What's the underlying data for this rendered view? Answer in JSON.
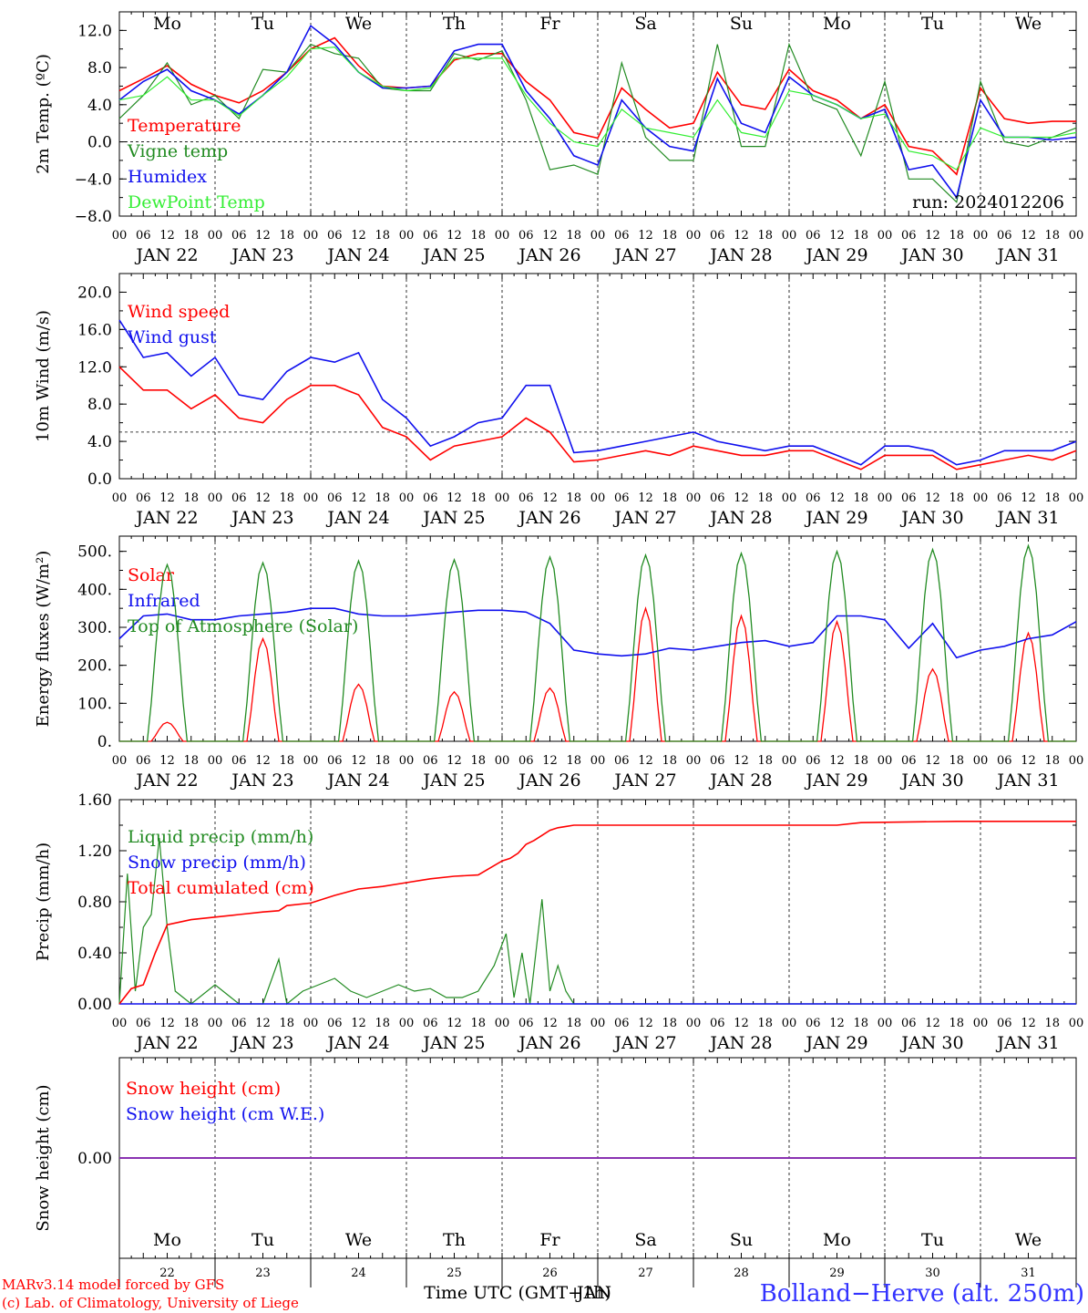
{
  "colors": {
    "red": "#ff0000",
    "darkgreen": "#228b22",
    "blue": "#1010ee",
    "lightgreen": "#33ee33",
    "purple": "#8b30b0"
  },
  "days": [
    "Mo",
    "Tu",
    "We",
    "Th",
    "Fr",
    "Sa",
    "Su",
    "Mo",
    "Tu",
    "We"
  ],
  "weekend_days": [
    5,
    6
  ],
  "date_labels": [
    "JAN 22",
    "JAN 23",
    "JAN 24",
    "JAN 25",
    "JAN 26",
    "JAN 27",
    "JAN 28",
    "JAN 29",
    "JAN 30",
    "JAN 31"
  ],
  "day_numbers": [
    "22",
    "23",
    "24",
    "25",
    "26",
    "27",
    "28",
    "29",
    "30",
    "31"
  ],
  "hour_ticks": [
    "00",
    "06",
    "12",
    "18"
  ],
  "hour_end": "00",
  "run_label": "run: 2024012206",
  "footer": {
    "line1": "MARv3.14 model forced by GFS",
    "line2": "(c) Lab. of Climatology, University of Liege",
    "axis_title": "Time UTC (GMT+1h)",
    "axis_overlap": "JAN",
    "station": "Bolland−Herve (alt. 250m)"
  },
  "chart_data": [
    {
      "type": "line",
      "ylabel": "2m Temp. (ºC)",
      "ylim": [
        -8,
        14
      ],
      "yticks": [
        12.0,
        8.0,
        4.0,
        0.0,
        -4.0,
        -8.0
      ],
      "ytick_labels": [
        "12.0",
        "8.0",
        "4.0",
        "0.0",
        "−4.0",
        "−8.0"
      ],
      "reference_line": 0,
      "x_hours": [
        0,
        6,
        12,
        18,
        24,
        30,
        36,
        42,
        48,
        54,
        60,
        66,
        72,
        78,
        84,
        90,
        96,
        102,
        108,
        114,
        120,
        126,
        132,
        138,
        144,
        150,
        156,
        162,
        168,
        174,
        180,
        186,
        192,
        198,
        204,
        210,
        216,
        222,
        228,
        234,
        240
      ],
      "series": [
        {
          "name": "Temperature",
          "color": "red",
          "values": [
            5.5,
            6.8,
            8.2,
            6.2,
            5.0,
            4.2,
            5.5,
            7.5,
            10.0,
            11.2,
            8.2,
            6.0,
            5.8,
            6.0,
            8.8,
            9.5,
            9.5,
            6.5,
            4.5,
            1.0,
            0.4,
            5.8,
            3.5,
            1.5,
            2.0,
            7.5,
            4.0,
            3.5,
            7.8,
            5.5,
            4.5,
            2.5,
            4.0,
            -0.5,
            -1.0,
            -3.5,
            5.8,
            2.5,
            2.0,
            2.2,
            2.2
          ]
        },
        {
          "name": "Vigne temp",
          "color": "darkgreen",
          "values": [
            2.5,
            5.0,
            8.5,
            4.0,
            5.0,
            2.5,
            7.8,
            7.5,
            10.5,
            9.5,
            9.0,
            5.8,
            5.5,
            5.5,
            9.5,
            8.8,
            9.8,
            4.5,
            -3.0,
            -2.5,
            -3.5,
            8.5,
            0.5,
            -2.0,
            -2.0,
            10.5,
            -0.5,
            -0.5,
            10.5,
            4.5,
            3.5,
            -1.5,
            6.5,
            -4.0,
            -4.0,
            -6.5,
            6.5,
            0.0,
            -0.5,
            0.5,
            1.5
          ]
        },
        {
          "name": "Humidex",
          "color": "blue",
          "values": [
            4.5,
            6.5,
            7.8,
            5.5,
            4.5,
            3.0,
            5.0,
            7.5,
            12.5,
            10.5,
            7.5,
            5.8,
            5.8,
            6.0,
            9.8,
            10.5,
            10.5,
            5.5,
            2.5,
            -1.5,
            -2.5,
            4.5,
            1.5,
            -0.5,
            -1.0,
            6.8,
            2.0,
            1.0,
            7.0,
            5.0,
            4.0,
            2.5,
            3.5,
            -3.0,
            -2.5,
            -6.0,
            4.5,
            0.5,
            0.5,
            0.2,
            0.5
          ]
        },
        {
          "name": "DewPoint Temp",
          "color": "lightgreen",
          "values": [
            4.5,
            5.0,
            7.0,
            4.5,
            4.5,
            2.8,
            5.0,
            7.0,
            10.0,
            10.2,
            7.5,
            6.0,
            5.5,
            5.8,
            9.0,
            9.0,
            9.0,
            5.0,
            2.0,
            0.0,
            -0.5,
            3.5,
            1.5,
            1.0,
            0.5,
            4.5,
            1.0,
            0.5,
            5.5,
            5.0,
            4.0,
            2.5,
            3.0,
            -1.0,
            -1.5,
            -3.0,
            1.5,
            0.5,
            0.5,
            0.5,
            1.0
          ]
        }
      ]
    },
    {
      "type": "line",
      "ylabel": "10m Wind (m/s)",
      "ylim": [
        0,
        22
      ],
      "yticks": [
        20.0,
        16.0,
        12.0,
        8.0,
        4.0,
        0.0
      ],
      "ytick_labels": [
        "20.0",
        "16.0",
        "12.0",
        "8.0",
        "4.0",
        "0.0"
      ],
      "reference_line": 5,
      "x_hours": [
        0,
        6,
        12,
        18,
        24,
        30,
        36,
        42,
        48,
        54,
        60,
        66,
        72,
        78,
        84,
        90,
        96,
        102,
        108,
        114,
        120,
        126,
        132,
        138,
        144,
        150,
        156,
        162,
        168,
        174,
        180,
        186,
        192,
        198,
        204,
        210,
        216,
        222,
        228,
        234,
        240
      ],
      "series": [
        {
          "name": "Wind speed",
          "color": "red",
          "values": [
            12.0,
            9.5,
            9.5,
            7.5,
            9.0,
            6.5,
            6.0,
            8.5,
            10.0,
            10.0,
            9.0,
            5.5,
            4.5,
            2.0,
            3.5,
            4.0,
            4.5,
            6.5,
            5.0,
            1.8,
            2.0,
            2.5,
            3.0,
            2.5,
            3.5,
            3.0,
            2.5,
            2.5,
            3.0,
            3.0,
            2.0,
            1.0,
            2.5,
            2.5,
            2.5,
            1.0,
            1.5,
            2.0,
            2.5,
            2.0,
            3.0
          ]
        },
        {
          "name": "Wind gust",
          "color": "blue",
          "values": [
            17.0,
            13.0,
            13.5,
            11.0,
            13.0,
            9.0,
            8.5,
            11.5,
            13.0,
            12.5,
            13.5,
            8.5,
            6.5,
            3.5,
            4.5,
            6.0,
            6.5,
            10.0,
            10.0,
            2.8,
            3.0,
            3.5,
            4.0,
            4.5,
            5.0,
            4.0,
            3.5,
            3.0,
            3.5,
            3.5,
            2.5,
            1.5,
            3.5,
            3.5,
            3.0,
            1.5,
            2.0,
            3.0,
            3.0,
            3.0,
            4.0
          ]
        }
      ]
    },
    {
      "type": "line",
      "ylabel": "Energy fluxes (W/m²)",
      "ylim": [
        0,
        540
      ],
      "yticks": [
        500,
        400,
        300,
        200,
        100,
        0
      ],
      "ytick_labels": [
        "500.",
        "400.",
        "300.",
        "200.",
        "100.",
        "0."
      ],
      "series": [
        {
          "name": "Solar",
          "color": "red",
          "day_peaks": [
            50,
            270,
            150,
            130,
            140,
            350,
            330,
            315,
            190,
            285
          ]
        },
        {
          "name": "Infrared",
          "color": "blue",
          "x_hours": [
            0,
            6,
            12,
            18,
            24,
            30,
            36,
            42,
            48,
            54,
            60,
            66,
            72,
            78,
            84,
            90,
            96,
            102,
            108,
            114,
            120,
            126,
            132,
            138,
            144,
            150,
            156,
            162,
            168,
            174,
            180,
            186,
            192,
            198,
            204,
            210,
            216,
            222,
            228,
            234,
            240
          ],
          "values": [
            270,
            330,
            335,
            320,
            320,
            330,
            335,
            340,
            350,
            350,
            335,
            330,
            330,
            335,
            340,
            345,
            345,
            340,
            310,
            240,
            230,
            225,
            230,
            245,
            240,
            250,
            260,
            265,
            250,
            260,
            330,
            330,
            320,
            245,
            310,
            220,
            240,
            250,
            270,
            280,
            315
          ]
        },
        {
          "name": "Top of Atmosphere (Solar)",
          "color": "darkgreen",
          "day_peaks": [
            465,
            470,
            475,
            478,
            485,
            490,
            495,
            500,
            505,
            515
          ]
        }
      ]
    },
    {
      "type": "line",
      "ylabel": "Precip (mm/h)",
      "ylim": [
        0,
        1.6
      ],
      "yticks": [
        1.6,
        1.2,
        0.8,
        0.4,
        0.0
      ],
      "ytick_labels": [
        "1.60",
        "1.20",
        "0.80",
        "0.40",
        "0.00"
      ],
      "series": [
        {
          "name": "Liquid precip (mm/h)",
          "color": "darkgreen",
          "x_hours": [
            0,
            2,
            4,
            6,
            8,
            10,
            12,
            14,
            18,
            24,
            30,
            36,
            40,
            42,
            46,
            50,
            54,
            58,
            62,
            66,
            70,
            74,
            78,
            82,
            86,
            90,
            94,
            97,
            99,
            101,
            103,
            106,
            108,
            110,
            112,
            114,
            118,
            120,
            240
          ],
          "values": [
            0,
            1.02,
            0.1,
            0.6,
            0.7,
            1.3,
            0.6,
            0.1,
            0.0,
            0.15,
            0.0,
            0.0,
            0.35,
            0.0,
            0.1,
            0.15,
            0.2,
            0.1,
            0.05,
            0.1,
            0.15,
            0.1,
            0.12,
            0.05,
            0.05,
            0.1,
            0.3,
            0.55,
            0.05,
            0.4,
            0.0,
            0.82,
            0.1,
            0.3,
            0.1,
            0.0,
            0.0,
            0.0,
            0.0
          ]
        },
        {
          "name": "Snow precip (mm/h)",
          "color": "blue",
          "x_hours": [
            0,
            240
          ],
          "values": [
            0,
            0
          ]
        },
        {
          "name": "Total cumulated (cm)",
          "color": "red",
          "x_hours": [
            0,
            3,
            6,
            9,
            12,
            18,
            24,
            30,
            36,
            40,
            42,
            48,
            54,
            60,
            66,
            72,
            78,
            84,
            90,
            96,
            98,
            100,
            102,
            104,
            106,
            108,
            110,
            112,
            114,
            120,
            150,
            180,
            186,
            210,
            240
          ],
          "values": [
            0,
            0.12,
            0.15,
            0.4,
            0.62,
            0.66,
            0.68,
            0.7,
            0.72,
            0.73,
            0.77,
            0.79,
            0.85,
            0.9,
            0.92,
            0.95,
            0.98,
            1.0,
            1.01,
            1.12,
            1.14,
            1.18,
            1.25,
            1.28,
            1.32,
            1.36,
            1.38,
            1.39,
            1.4,
            1.4,
            1.4,
            1.4,
            1.42,
            1.43,
            1.43
          ]
        }
      ]
    },
    {
      "type": "line",
      "ylabel": "Snow height (cm)",
      "ylim": [
        -1,
        1
      ],
      "yticks": [
        0.0
      ],
      "ytick_labels": [
        "0.00"
      ],
      "series": [
        {
          "name": "Snow height (cm)",
          "color": "red",
          "x_hours": [
            0,
            240
          ],
          "values": [
            0,
            0
          ]
        },
        {
          "name": "Snow height (cm W.E.)",
          "color": "blue",
          "x_hours": [
            0,
            240
          ],
          "values": [
            0,
            0
          ]
        }
      ]
    }
  ]
}
